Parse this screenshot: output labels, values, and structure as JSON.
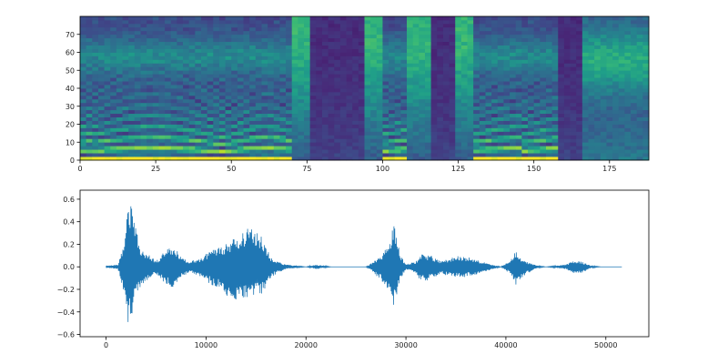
{
  "chart_data": [
    {
      "type": "heatmap",
      "title": "",
      "xlabel": "",
      "ylabel": "",
      "xlim": [
        0,
        188
      ],
      "ylim": [
        0,
        80
      ],
      "xticks": [
        "0",
        "25",
        "50",
        "75",
        "100",
        "125",
        "150",
        "175"
      ],
      "yticks": [
        "0",
        "10",
        "20",
        "30",
        "40",
        "50",
        "60",
        "70"
      ],
      "colormap": "viridis",
      "grid": false,
      "n_frames": 188,
      "n_mel_bins": 80,
      "segments": [
        {
          "start": 0,
          "end": 4,
          "kind": "voiced"
        },
        {
          "start": 4,
          "end": 70,
          "kind": "voiced"
        },
        {
          "start": 70,
          "end": 76,
          "kind": "fricative"
        },
        {
          "start": 76,
          "end": 94,
          "kind": "silence"
        },
        {
          "start": 94,
          "end": 100,
          "kind": "fricative"
        },
        {
          "start": 100,
          "end": 108,
          "kind": "voiced"
        },
        {
          "start": 108,
          "end": 116,
          "kind": "fricative"
        },
        {
          "start": 116,
          "end": 124,
          "kind": "silence"
        },
        {
          "start": 124,
          "end": 129,
          "kind": "fricative"
        },
        {
          "start": 129,
          "end": 146,
          "kind": "voiced"
        },
        {
          "start": 146,
          "end": 158,
          "kind": "voiced"
        },
        {
          "start": 158,
          "end": 166,
          "kind": "silence"
        },
        {
          "start": 166,
          "end": 188,
          "kind": "voiced_low"
        }
      ]
    },
    {
      "type": "line",
      "title": "",
      "xlabel": "",
      "ylabel": "",
      "xlim": [
        -2600,
        54300
      ],
      "ylim": [
        -0.62,
        0.68
      ],
      "xticks": [
        0,
        10000,
        20000,
        30000,
        40000,
        50000
      ],
      "yticks": [
        -0.6,
        -0.4,
        -0.2,
        0.0,
        0.2,
        0.4,
        0.6
      ],
      "color": "#1f77b4",
      "grid": false,
      "n_samples": 51600,
      "envelope": {
        "x": [
          0,
          1200,
          1800,
          2200,
          2500,
          2900,
          3400,
          4200,
          5000,
          6000,
          6800,
          7600,
          8400,
          9500,
          10500,
          11500,
          12200,
          13200,
          14500,
          15600,
          16400,
          17000,
          18000,
          19000,
          20000,
          21000,
          21800,
          22500,
          24000,
          26000,
          26500,
          27500,
          28200,
          28800,
          29400,
          30000,
          31000,
          31500,
          32500,
          33500,
          34500,
          35500,
          36500,
          37500,
          38500,
          39500,
          40500,
          41000,
          41500,
          42500,
          43200,
          44000,
          45000,
          46000,
          46800,
          47500,
          48500,
          49500,
          50500,
          51600
        ],
        "upper": [
          0.01,
          0.02,
          0.2,
          0.55,
          0.62,
          0.4,
          0.18,
          0.12,
          0.05,
          0.15,
          0.18,
          0.08,
          0.05,
          0.08,
          0.15,
          0.18,
          0.22,
          0.28,
          0.36,
          0.26,
          0.1,
          0.05,
          0.02,
          0.01,
          0.0,
          0.02,
          0.01,
          0.0,
          0.0,
          0.0,
          0.03,
          0.1,
          0.2,
          0.38,
          0.12,
          0.02,
          0.05,
          0.12,
          0.1,
          0.05,
          0.08,
          0.1,
          0.08,
          0.05,
          0.02,
          0.0,
          0.06,
          0.15,
          0.08,
          0.03,
          0.01,
          0.0,
          0.01,
          0.02,
          0.06,
          0.05,
          0.01,
          0.0,
          0.0,
          0.0
        ],
        "lower": [
          -0.01,
          -0.02,
          -0.25,
          -0.57,
          -0.45,
          -0.3,
          -0.2,
          -0.13,
          -0.06,
          -0.16,
          -0.19,
          -0.09,
          -0.05,
          -0.09,
          -0.16,
          -0.2,
          -0.27,
          -0.3,
          -0.28,
          -0.24,
          -0.12,
          -0.06,
          -0.02,
          -0.01,
          0.0,
          -0.02,
          -0.01,
          0.0,
          0.0,
          0.0,
          -0.03,
          -0.12,
          -0.25,
          -0.35,
          -0.14,
          -0.02,
          -0.06,
          -0.14,
          -0.11,
          -0.06,
          -0.09,
          -0.1,
          -0.08,
          -0.06,
          -0.03,
          0.0,
          -0.07,
          -0.16,
          -0.1,
          -0.04,
          -0.01,
          0.0,
          -0.01,
          -0.02,
          -0.06,
          -0.06,
          -0.01,
          0.0,
          0.0,
          0.0
        ]
      }
    }
  ]
}
